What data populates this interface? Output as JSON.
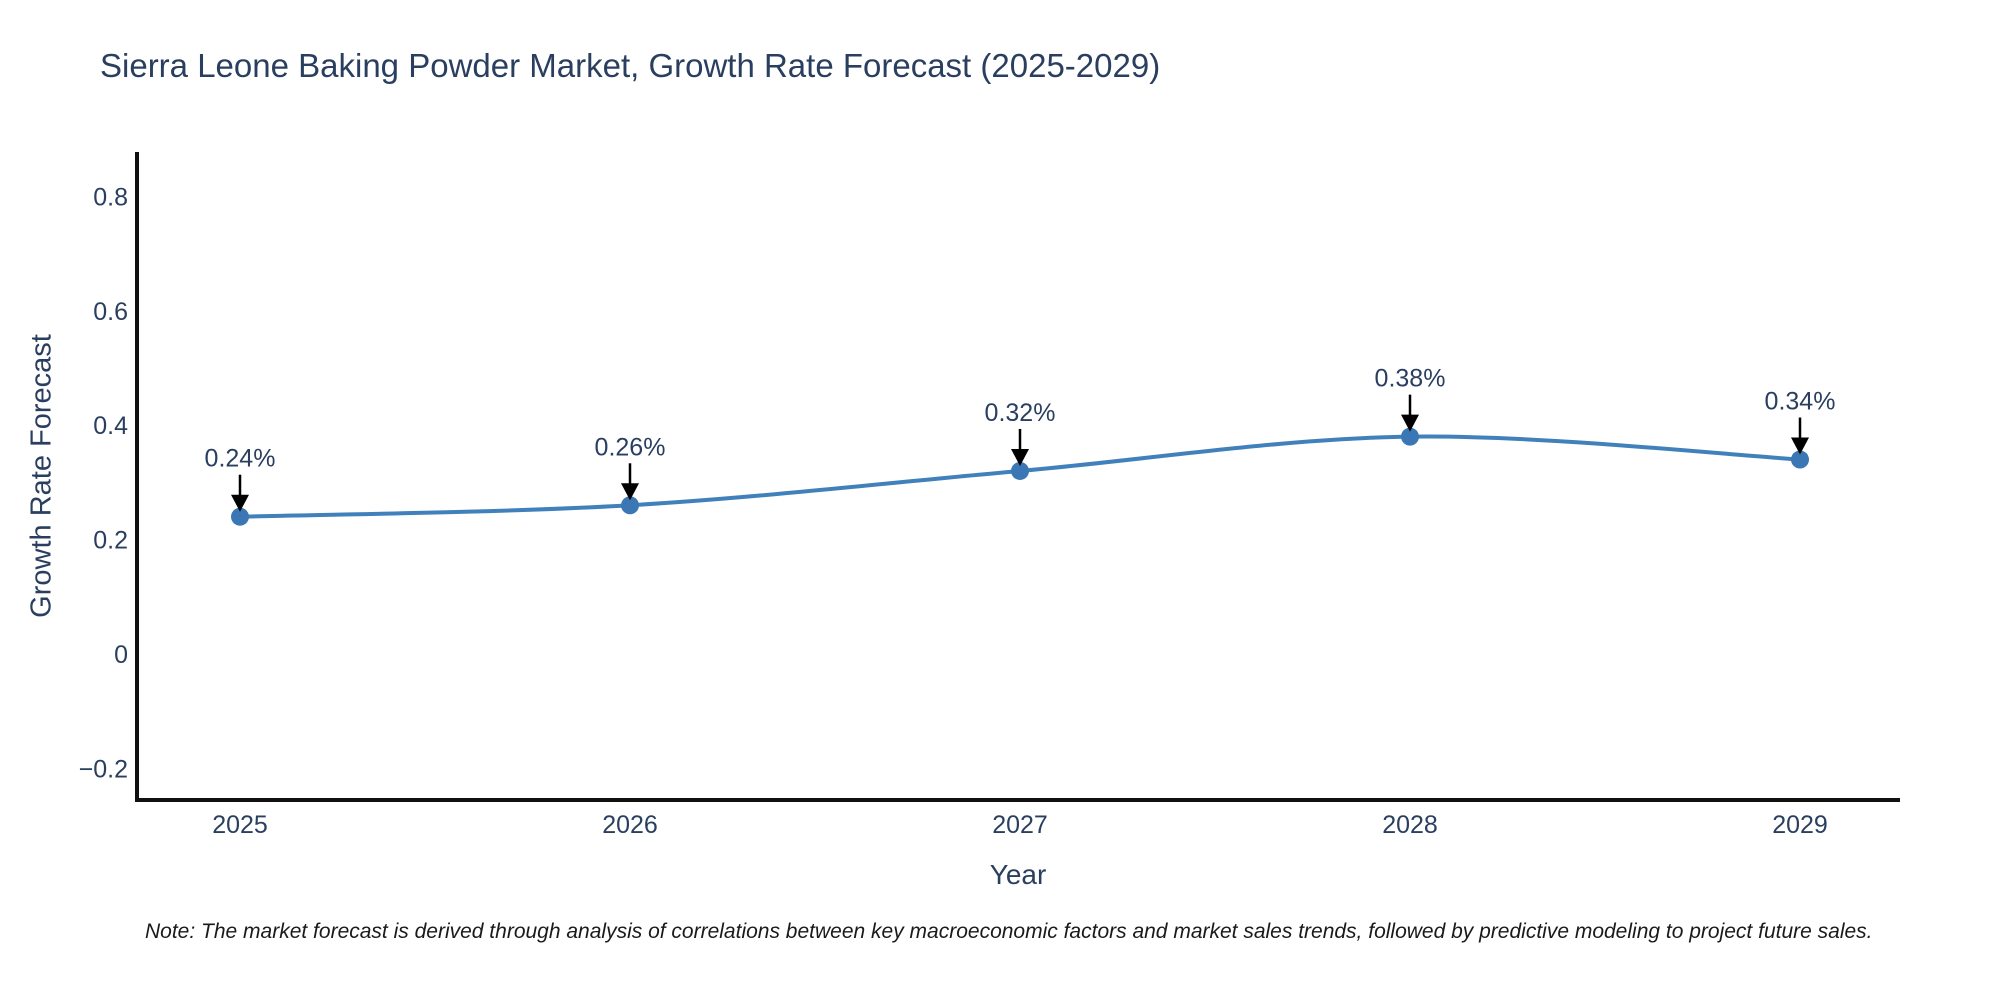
{
  "note": "Note: The market forecast is derived through analysis of correlations between key macroeconomic factors and market sales trends, followed by predictive modeling to project future sales.",
  "chart_data": {
    "type": "line",
    "title": "Sierra Leone Baking Powder Market, Growth Rate Forecast (2025-2029)",
    "xlabel": "Year",
    "ylabel": "Growth Rate Forecast",
    "categories": [
      "2025",
      "2026",
      "2027",
      "2028",
      "2029"
    ],
    "series": [
      {
        "name": "Growth Rate Forecast",
        "values": [
          0.24,
          0.26,
          0.32,
          0.38,
          0.34
        ]
      }
    ],
    "point_labels": [
      "0.24%",
      "0.26%",
      "0.32%",
      "0.38%",
      "0.34%"
    ],
    "y_ticks": [
      {
        "value": 0.8,
        "label": "0.8"
      },
      {
        "value": 0.6,
        "label": "0.6"
      },
      {
        "value": 0.4,
        "label": "0.4"
      },
      {
        "value": 0.2,
        "label": "0.2"
      },
      {
        "value": 0,
        "label": "0"
      },
      {
        "value": -0.2,
        "label": "−0.2"
      }
    ],
    "ylim": [
      -0.26,
      0.88
    ],
    "grid": false,
    "legend": "none",
    "line_shape": "spline",
    "annotation_style": "down-arrow",
    "colors": {
      "line": "#4181bb",
      "marker": "#3a77b4",
      "arrow": "#000000",
      "axis": "#111111",
      "text": "#2a3f5f"
    }
  }
}
